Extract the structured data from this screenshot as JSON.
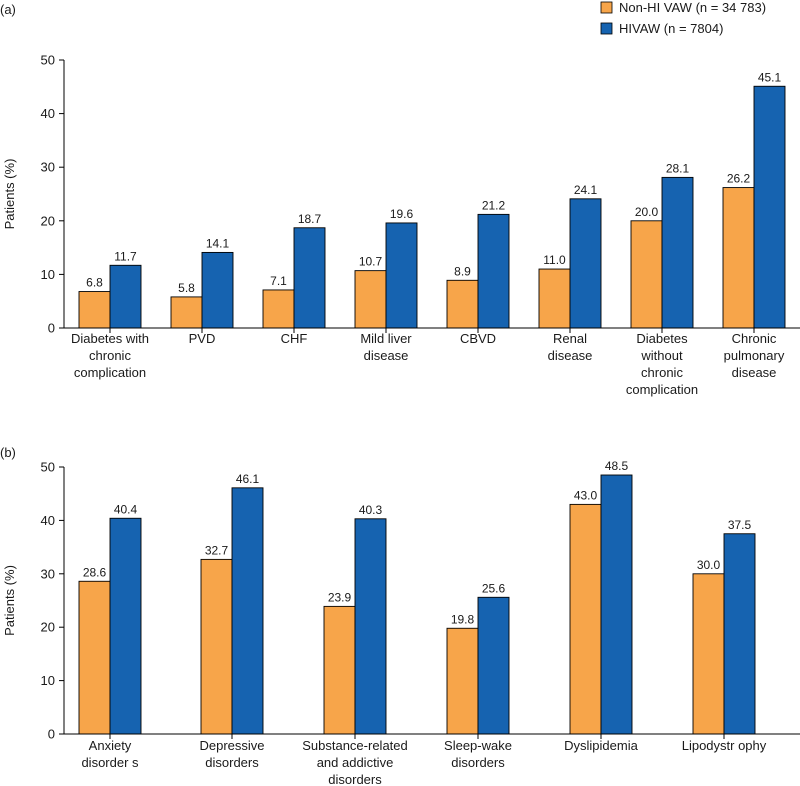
{
  "colors": {
    "non_hi": "#F7A54A",
    "hi": "#1663B0",
    "axis": "#000000"
  },
  "legend": {
    "items": [
      {
        "label": "Non-HI VAW (n = 34 783)",
        "color": "#F7A54A"
      },
      {
        "label": "HIVAW (n = 7804)",
        "color": "#1663B0"
      }
    ]
  },
  "chart_data": [
    {
      "type": "bar",
      "panel_label": "(a)",
      "ylabel": "Patients (%)",
      "ylim": [
        0,
        50
      ],
      "yticks": [
        "0",
        "10",
        "20",
        "30",
        "40",
        "50"
      ],
      "categories": [
        [
          "Diabetes with",
          "chronic",
          "complication"
        ],
        [
          "PVD"
        ],
        [
          "CHF"
        ],
        [
          "Mild liver",
          "disease"
        ],
        [
          "CBVD"
        ],
        [
          "Renal",
          "disease"
        ],
        [
          "Diabetes",
          "without",
          "chronic",
          "complication"
        ],
        [
          "Chronic",
          "pulmonary",
          "disease"
        ]
      ],
      "series": [
        {
          "name": "Non-HI VAW (n = 34 783)",
          "values": [
            6.8,
            5.8,
            7.1,
            10.7,
            8.9,
            11.0,
            20.0,
            26.2
          ],
          "labels": [
            "6.8",
            "5.8",
            "7.1",
            "10.7",
            "8.9",
            "11.0",
            "20.0",
            "26.2"
          ]
        },
        {
          "name": "HIVAW (n = 7804)",
          "values": [
            11.7,
            14.1,
            18.7,
            19.6,
            21.2,
            24.1,
            28.1,
            45.1
          ],
          "labels": [
            "11.7",
            "14.1",
            "18.7",
            "19.6",
            "21.2",
            "24.1",
            "28.1",
            "45.1"
          ]
        }
      ]
    },
    {
      "type": "bar",
      "panel_label": "(b)",
      "ylabel": "Patients (%)",
      "ylim": [
        0,
        50
      ],
      "yticks": [
        "0",
        "10",
        "20",
        "30",
        "40",
        "50"
      ],
      "categories": [
        [
          "Anxiety",
          "disorder s"
        ],
        [
          "Depressive",
          "disorders"
        ],
        [
          "Substance-related",
          "and addictive",
          "disorders"
        ],
        [
          "Sleep-wake",
          "disorders"
        ],
        [
          "Dyslipidemia"
        ],
        [
          "Lipodystr ophy"
        ]
      ],
      "series": [
        {
          "name": "Non-HI VAW (n = 34 783)",
          "values": [
            28.6,
            32.7,
            23.9,
            19.8,
            43.0,
            30.0
          ],
          "labels": [
            "28.6",
            "32.7",
            "23.9",
            "19.8",
            "43.0",
            "30.0"
          ]
        },
        {
          "name": "HIVAW (n = 7804)",
          "values": [
            40.4,
            46.1,
            40.3,
            25.6,
            48.5,
            37.5
          ],
          "labels": [
            "40.4",
            "46.1",
            "40.3",
            "25.6",
            "48.5",
            "37.5"
          ]
        }
      ]
    }
  ]
}
